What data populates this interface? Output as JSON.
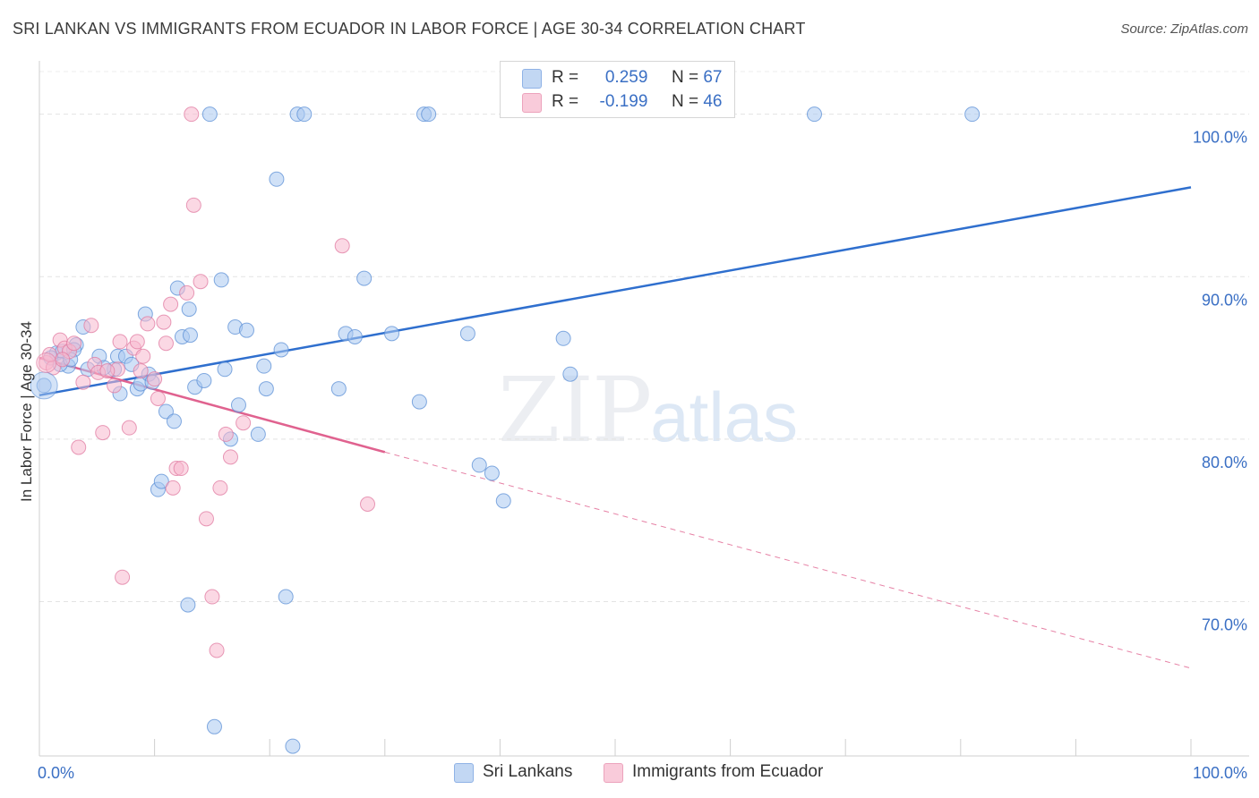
{
  "title": "SRI LANKAN VS IMMIGRANTS FROM ECUADOR IN LABOR FORCE | AGE 30-34 CORRELATION CHART",
  "source": "Source: ZipAtlas.com",
  "watermark": {
    "zip": "ZIP",
    "atlas": "atlas"
  },
  "legend": {
    "rows": [
      {
        "r_label": "R =",
        "r_value": "0.259",
        "n_label": "N =",
        "n_value": "67",
        "color": "#aac8f0"
      },
      {
        "r_label": "R =",
        "r_value": "-0.199",
        "n_label": "N =",
        "n_value": "46",
        "color": "#f7b8cd"
      }
    ]
  },
  "bottom_legend": [
    {
      "label": "Sri Lankans",
      "color": "#aac8f0"
    },
    {
      "label": "Immigrants from Ecuador",
      "color": "#f7b8cd"
    }
  ],
  "chart_data": {
    "type": "scatter",
    "title": "SRI LANKAN VS IMMIGRANTS FROM ECUADOR IN LABOR FORCE | AGE 30-34 CORRELATION CHART",
    "xlabel": "",
    "ylabel": "In Labor Force | Age 30-34",
    "xlim": [
      0,
      100
    ],
    "ylim": [
      60.5,
      104
    ],
    "x_tick_labels": [
      "0.0%",
      "100.0%"
    ],
    "y_ticks": [
      70,
      80,
      90,
      100
    ],
    "y_tick_labels": [
      "70.0%",
      "80.0%",
      "90.0%",
      "100.0%"
    ],
    "grid": true,
    "series": [
      {
        "name": "Sri Lankans",
        "color": "#aac8f0",
        "stroke": "#5b8fd6",
        "trend": {
          "x": [
            0,
            100
          ],
          "y": [
            82.7,
            95.5
          ],
          "color": "#2f6fce"
        },
        "points": [
          [
            0.4,
            83.3
          ],
          [
            1.5,
            85.3
          ],
          [
            2.0,
            85.4
          ],
          [
            2.5,
            84.5
          ],
          [
            3.2,
            85.8
          ],
          [
            3.8,
            86.9
          ],
          [
            4.2,
            84.3
          ],
          [
            5.2,
            85.1
          ],
          [
            6.5,
            84.3
          ],
          [
            6.8,
            85.1
          ],
          [
            7.5,
            85.1
          ],
          [
            8.0,
            84.6
          ],
          [
            7.0,
            82.8
          ],
          [
            8.5,
            83.1
          ],
          [
            8.8,
            83.4
          ],
          [
            9.2,
            87.7
          ],
          [
            9.5,
            84.0
          ],
          [
            10.3,
            76.9
          ],
          [
            10.6,
            77.4
          ],
          [
            11.0,
            81.7
          ],
          [
            11.7,
            81.1
          ],
          [
            12.0,
            89.3
          ],
          [
            12.4,
            86.3
          ],
          [
            12.9,
            69.8
          ],
          [
            13.0,
            88.0
          ],
          [
            13.1,
            86.4
          ],
          [
            13.5,
            83.2
          ],
          [
            14.3,
            83.6
          ],
          [
            14.8,
            100.0
          ],
          [
            15.2,
            62.3
          ],
          [
            15.8,
            89.8
          ],
          [
            16.1,
            84.3
          ],
          [
            16.6,
            80.0
          ],
          [
            17.0,
            86.9
          ],
          [
            17.3,
            82.1
          ],
          [
            18.0,
            86.7
          ],
          [
            19.0,
            80.3
          ],
          [
            19.5,
            84.5
          ],
          [
            19.7,
            83.1
          ],
          [
            20.6,
            96.0
          ],
          [
            21.0,
            85.5
          ],
          [
            21.4,
            70.3
          ],
          [
            22.0,
            61.1
          ],
          [
            22.4,
            100.0
          ],
          [
            23.0,
            100.0
          ],
          [
            26.0,
            83.1
          ],
          [
            26.6,
            86.5
          ],
          [
            27.4,
            86.3
          ],
          [
            28.2,
            89.9
          ],
          [
            30.6,
            86.5
          ],
          [
            33.0,
            82.3
          ],
          [
            33.4,
            100.0
          ],
          [
            33.8,
            100.0
          ],
          [
            37.2,
            86.5
          ],
          [
            38.2,
            78.4
          ],
          [
            39.3,
            77.9
          ],
          [
            40.3,
            76.2
          ],
          [
            45.5,
            86.2
          ],
          [
            46.1,
            84.0
          ],
          [
            67.3,
            100.0
          ],
          [
            81.0,
            100.0
          ],
          [
            1.0,
            85.0
          ],
          [
            1.8,
            84.6
          ],
          [
            3.0,
            85.5
          ],
          [
            5.6,
            84.4
          ],
          [
            9.8,
            83.5
          ],
          [
            2.7,
            84.9
          ]
        ]
      },
      {
        "name": "Immigrants from Ecuador",
        "color": "#f7b8cd",
        "stroke": "#e07aa0",
        "trend": {
          "x": [
            0,
            30
          ],
          "y": [
            85.0,
            79.2
          ],
          "color": "#e0628f"
        },
        "trend_dashed": {
          "x": [
            30,
            100
          ],
          "y": [
            79.2,
            65.9
          ],
          "color": "#e0628f"
        },
        "points": [
          [
            0.6,
            84.7
          ],
          [
            1.2,
            84.4
          ],
          [
            1.8,
            86.1
          ],
          [
            2.2,
            85.6
          ],
          [
            2.6,
            85.4
          ],
          [
            3.0,
            85.9
          ],
          [
            3.4,
            79.5
          ],
          [
            3.8,
            83.5
          ],
          [
            4.5,
            87.0
          ],
          [
            4.8,
            84.6
          ],
          [
            5.1,
            84.1
          ],
          [
            5.5,
            80.4
          ],
          [
            6.5,
            83.3
          ],
          [
            6.8,
            84.3
          ],
          [
            7.0,
            86.0
          ],
          [
            7.2,
            71.5
          ],
          [
            7.8,
            80.7
          ],
          [
            8.2,
            85.6
          ],
          [
            8.5,
            86.0
          ],
          [
            9.0,
            85.1
          ],
          [
            9.4,
            87.1
          ],
          [
            10.0,
            83.7
          ],
          [
            10.3,
            82.5
          ],
          [
            10.8,
            87.2
          ],
          [
            11.0,
            85.9
          ],
          [
            11.4,
            88.3
          ],
          [
            11.6,
            77.0
          ],
          [
            11.9,
            78.2
          ],
          [
            12.3,
            78.2
          ],
          [
            12.8,
            89.0
          ],
          [
            13.2,
            100.0
          ],
          [
            13.4,
            94.4
          ],
          [
            14.0,
            89.7
          ],
          [
            14.5,
            75.1
          ],
          [
            15.0,
            70.3
          ],
          [
            15.4,
            67.0
          ],
          [
            15.7,
            77.0
          ],
          [
            16.2,
            80.3
          ],
          [
            16.6,
            78.9
          ],
          [
            17.7,
            81.0
          ],
          [
            26.3,
            91.9
          ],
          [
            28.5,
            76.0
          ],
          [
            0.9,
            85.2
          ],
          [
            2.0,
            84.9
          ],
          [
            5.9,
            84.2
          ],
          [
            8.8,
            84.2
          ]
        ]
      }
    ]
  }
}
